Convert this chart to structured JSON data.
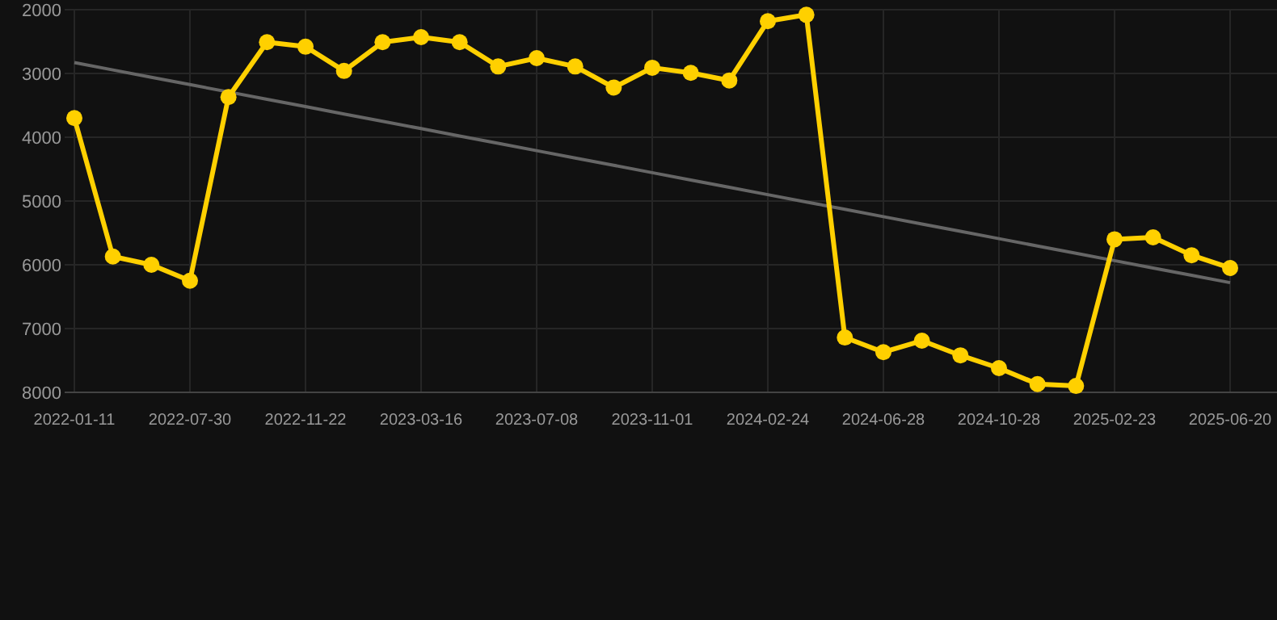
{
  "chart_data": {
    "type": "line",
    "categories": [
      "2022-01-11",
      null,
      null,
      "2022-07-30",
      null,
      null,
      "2022-11-22",
      null,
      null,
      "2023-03-16",
      null,
      null,
      "2023-07-08",
      null,
      null,
      "2023-11-01",
      null,
      null,
      "2024-02-24",
      null,
      null,
      "2024-06-28",
      null,
      null,
      "2024-10-28",
      null,
      null,
      "2025-02-23",
      null,
      null,
      "2025-06-20"
    ],
    "series": [
      {
        "color": "#ffd000",
        "marker": "circle",
        "values": [
          3700,
          5870,
          6000,
          6250,
          3370,
          2510,
          2580,
          2960,
          2510,
          2430,
          2510,
          2890,
          2760,
          2890,
          3220,
          2910,
          2990,
          3110,
          2180,
          2080,
          7140,
          7370,
          7190,
          7420,
          7620,
          7870,
          7900,
          5600,
          5570,
          5850,
          6050
        ]
      },
      {
        "type": "line",
        "color": "#666666",
        "marker": "none",
        "values": [
          2830,
          2945,
          3060,
          3175,
          3290,
          3405,
          3520,
          3635,
          3750,
          3865,
          3980,
          4095,
          4210,
          4325,
          4440,
          4555,
          4670,
          4785,
          4900,
          5015,
          5130,
          5245,
          5360,
          5475,
          5590,
          5705,
          5820,
          5935,
          6050,
          6165,
          6280
        ]
      }
    ],
    "ylim": [
      8000,
      2000
    ],
    "yticks": [
      2000,
      3000,
      4000,
      5000,
      6000,
      7000,
      8000
    ],
    "grid": true
  }
}
